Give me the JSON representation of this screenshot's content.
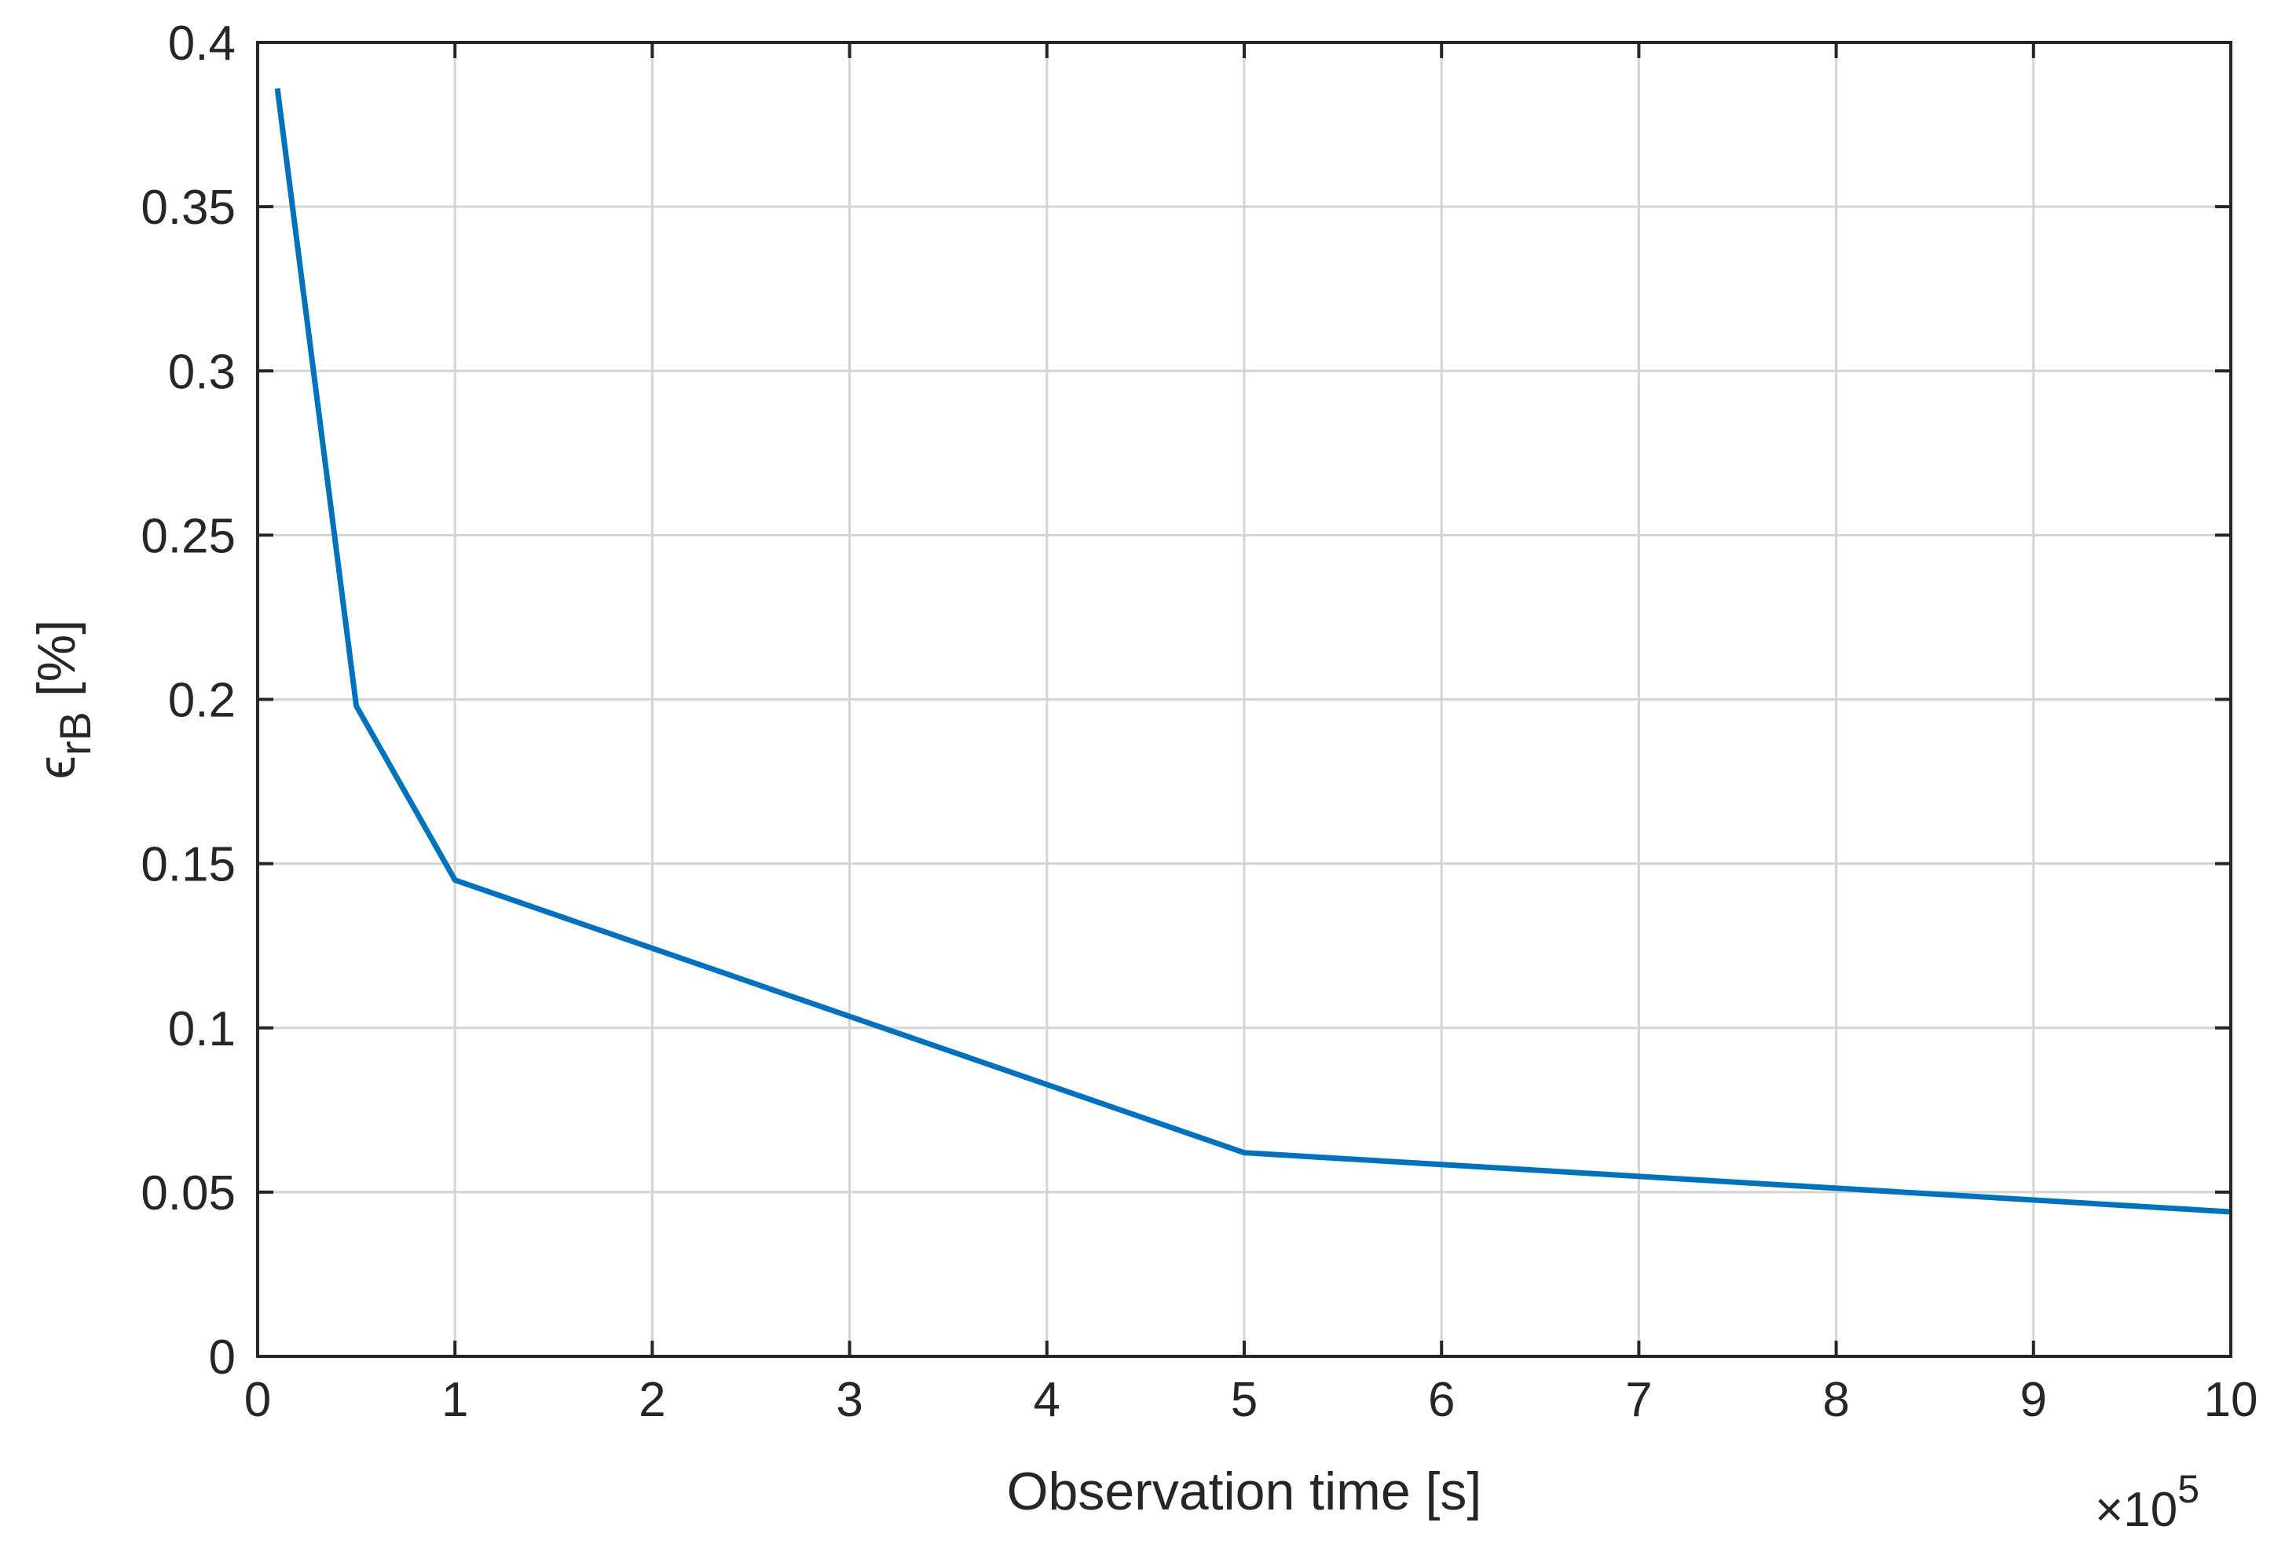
{
  "chart_data": {
    "type": "line",
    "xlabel": "Observation time [s]",
    "ylabel_main": "ϵ",
    "ylabel_sub": "rB",
    "ylabel_unit": " [%]",
    "x_exponent_label": "×10",
    "x_exponent": "5",
    "xlim": [
      0,
      1000000
    ],
    "ylim": [
      0,
      0.4
    ],
    "x_ticks": [
      0,
      100000,
      200000,
      300000,
      400000,
      500000,
      600000,
      700000,
      800000,
      900000,
      1000000
    ],
    "x_tick_labels": [
      "0",
      "1",
      "2",
      "3",
      "4",
      "5",
      "6",
      "7",
      "8",
      "9",
      "10"
    ],
    "y_ticks": [
      0,
      0.05,
      0.1,
      0.15,
      0.2,
      0.25,
      0.3,
      0.35,
      0.4
    ],
    "y_tick_labels": [
      "0",
      "0.05",
      "0.1",
      "0.15",
      "0.2",
      "0.25",
      "0.3",
      "0.35",
      "0.4"
    ],
    "grid": true,
    "series": [
      {
        "color": "#0072bd",
        "x": [
          10000,
          50000,
          100000,
          500000,
          1000000
        ],
        "y": [
          0.386,
          0.198,
          0.145,
          0.062,
          0.044
        ]
      }
    ]
  }
}
